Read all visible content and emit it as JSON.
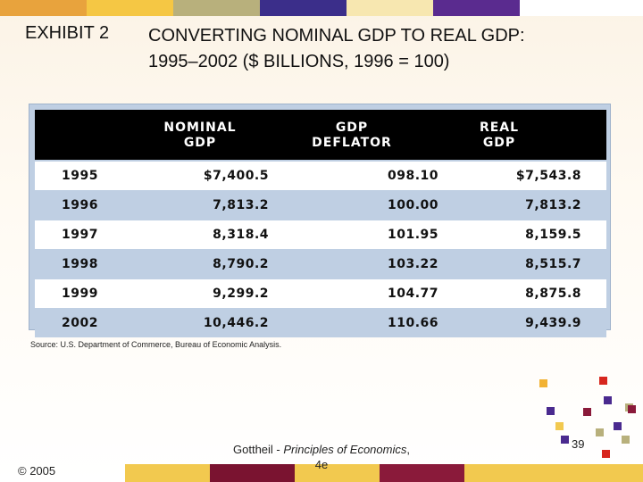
{
  "top_bar": [
    "#e8a33d",
    "#f5c744",
    "#b8b07c",
    "#3b2e8a",
    "#f7e7b0",
    "#5a2b8f",
    "#ffffff"
  ],
  "bottom_bar": [
    "#f2c94f",
    "#7a1330",
    "#f2c94f",
    "#8a1a3a",
    "#f2c94f"
  ],
  "header": {
    "exhibit": "EXHIBIT 2",
    "title_line1": "CONVERTING NOMINAL GDP TO REAL GDP:",
    "title_line2": "1995–2002 ($ BILLIONS, 1996 = 100)"
  },
  "table": {
    "columns": [
      {
        "line1": "",
        "line2": ""
      },
      {
        "line1": "NOMINAL",
        "line2": "GDP"
      },
      {
        "line1": "GDP",
        "line2": "DEFLATOR"
      },
      {
        "line1": "REAL",
        "line2": "GDP"
      }
    ],
    "rows": [
      {
        "year": "1995",
        "nominal": "$7,400.5",
        "deflator": "098.10",
        "real": "$7,543.8"
      },
      {
        "year": "1996",
        "nominal": "7,813.2",
        "deflator": "100.00",
        "real": "7,813.2"
      },
      {
        "year": "1997",
        "nominal": "8,318.4",
        "deflator": "101.95",
        "real": "8,159.5"
      },
      {
        "year": "1998",
        "nominal": "8,790.2",
        "deflator": "103.22",
        "real": "8,515.7"
      },
      {
        "year": "1999",
        "nominal": "9,299.2",
        "deflator": "104.77",
        "real": "8,875.8"
      },
      {
        "year": "2002",
        "nominal": "10,446.2",
        "deflator": "110.66",
        "real": "9,439.9"
      }
    ]
  },
  "source": "Source: U.S. Department of Commerce, Bureau of Economic Analysis.",
  "footer": {
    "copyright": "© 2005",
    "book_author": "Gottheil - ",
    "book_title": "Principles of Economics",
    "book_suffix": ",",
    "edition": "4e",
    "page": "39"
  }
}
